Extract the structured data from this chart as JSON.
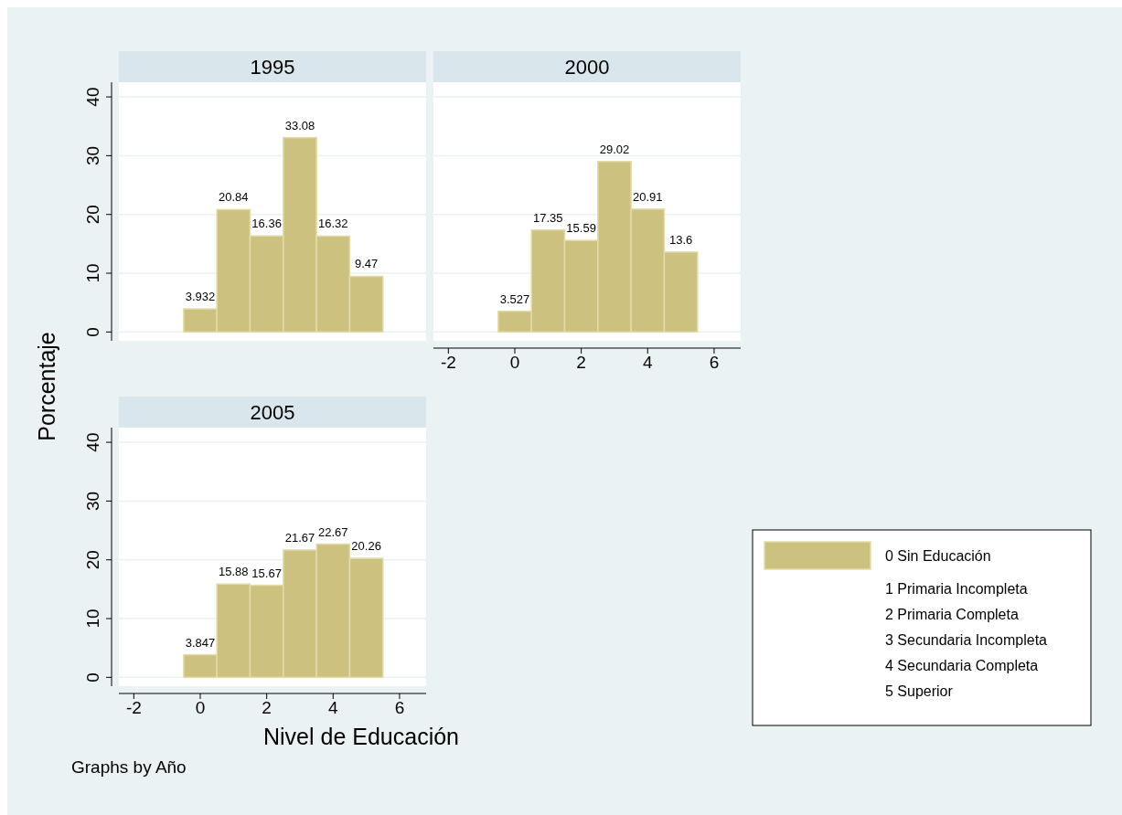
{
  "chart_data": [
    {
      "type": "histogram",
      "title": "1995",
      "ylabel": "Porcentaje",
      "bins": [
        -0.5,
        0.5,
        1.5,
        2.5,
        3.5,
        4.5,
        5.5
      ],
      "values": [
        3.932,
        20.84,
        16.36,
        33.08,
        16.32,
        9.47
      ],
      "color": "#cdc180",
      "xlim": [
        -2.45,
        6.8
      ],
      "ylim": [
        -1.5,
        42.5
      ],
      "yticks": [
        0,
        10,
        20,
        30,
        40
      ],
      "grid": "y",
      "tick_labels": "y",
      "data_labels": true
    },
    {
      "type": "histogram",
      "title": "2000",
      "bins": [
        -0.5,
        0.5,
        1.5,
        2.5,
        3.5,
        4.5,
        5.5
      ],
      "values": [
        3.527,
        17.35,
        15.59,
        29.02,
        20.91,
        13.6
      ],
      "color": "#cdc180",
      "xlim": [
        -2.45,
        6.8
      ],
      "xticks": [
        -2,
        0,
        2,
        4,
        6
      ],
      "ylim": [
        -1.5,
        42.5
      ],
      "yticks": [
        0,
        10,
        20,
        30,
        40
      ],
      "grid": "y",
      "tick_labels": "x",
      "data_labels": true
    },
    {
      "type": "histogram",
      "title": "2005",
      "xlabel": "Nivel de Educación",
      "bins": [
        -0.5,
        0.5,
        1.5,
        2.5,
        3.5,
        4.5,
        5.5
      ],
      "series": [
        {
          "name": "0 Sin Educación",
          "color": "#cdc180",
          "values": [
            3.847,
            15.88,
            15.67,
            21.67,
            22.67,
            20.26
          ]
        }
      ],
      "xlim": [
        -2.45,
        6.8
      ],
      "xticks": [
        -2,
        0,
        2,
        4,
        6
      ],
      "ylim": [
        -1.5,
        42.5
      ],
      "yticks": [
        0,
        10,
        20,
        30,
        40
      ],
      "grid": "y",
      "data_labels": true,
      "legend": "right",
      "annotations": [
        "1 Primaria Incompleta",
        "2 Primaria Completa",
        "3 Secundaria Incompleta",
        "4 Secundaria Completa",
        "5 Superior",
        "Graphs by Año"
      ]
    }
  ]
}
